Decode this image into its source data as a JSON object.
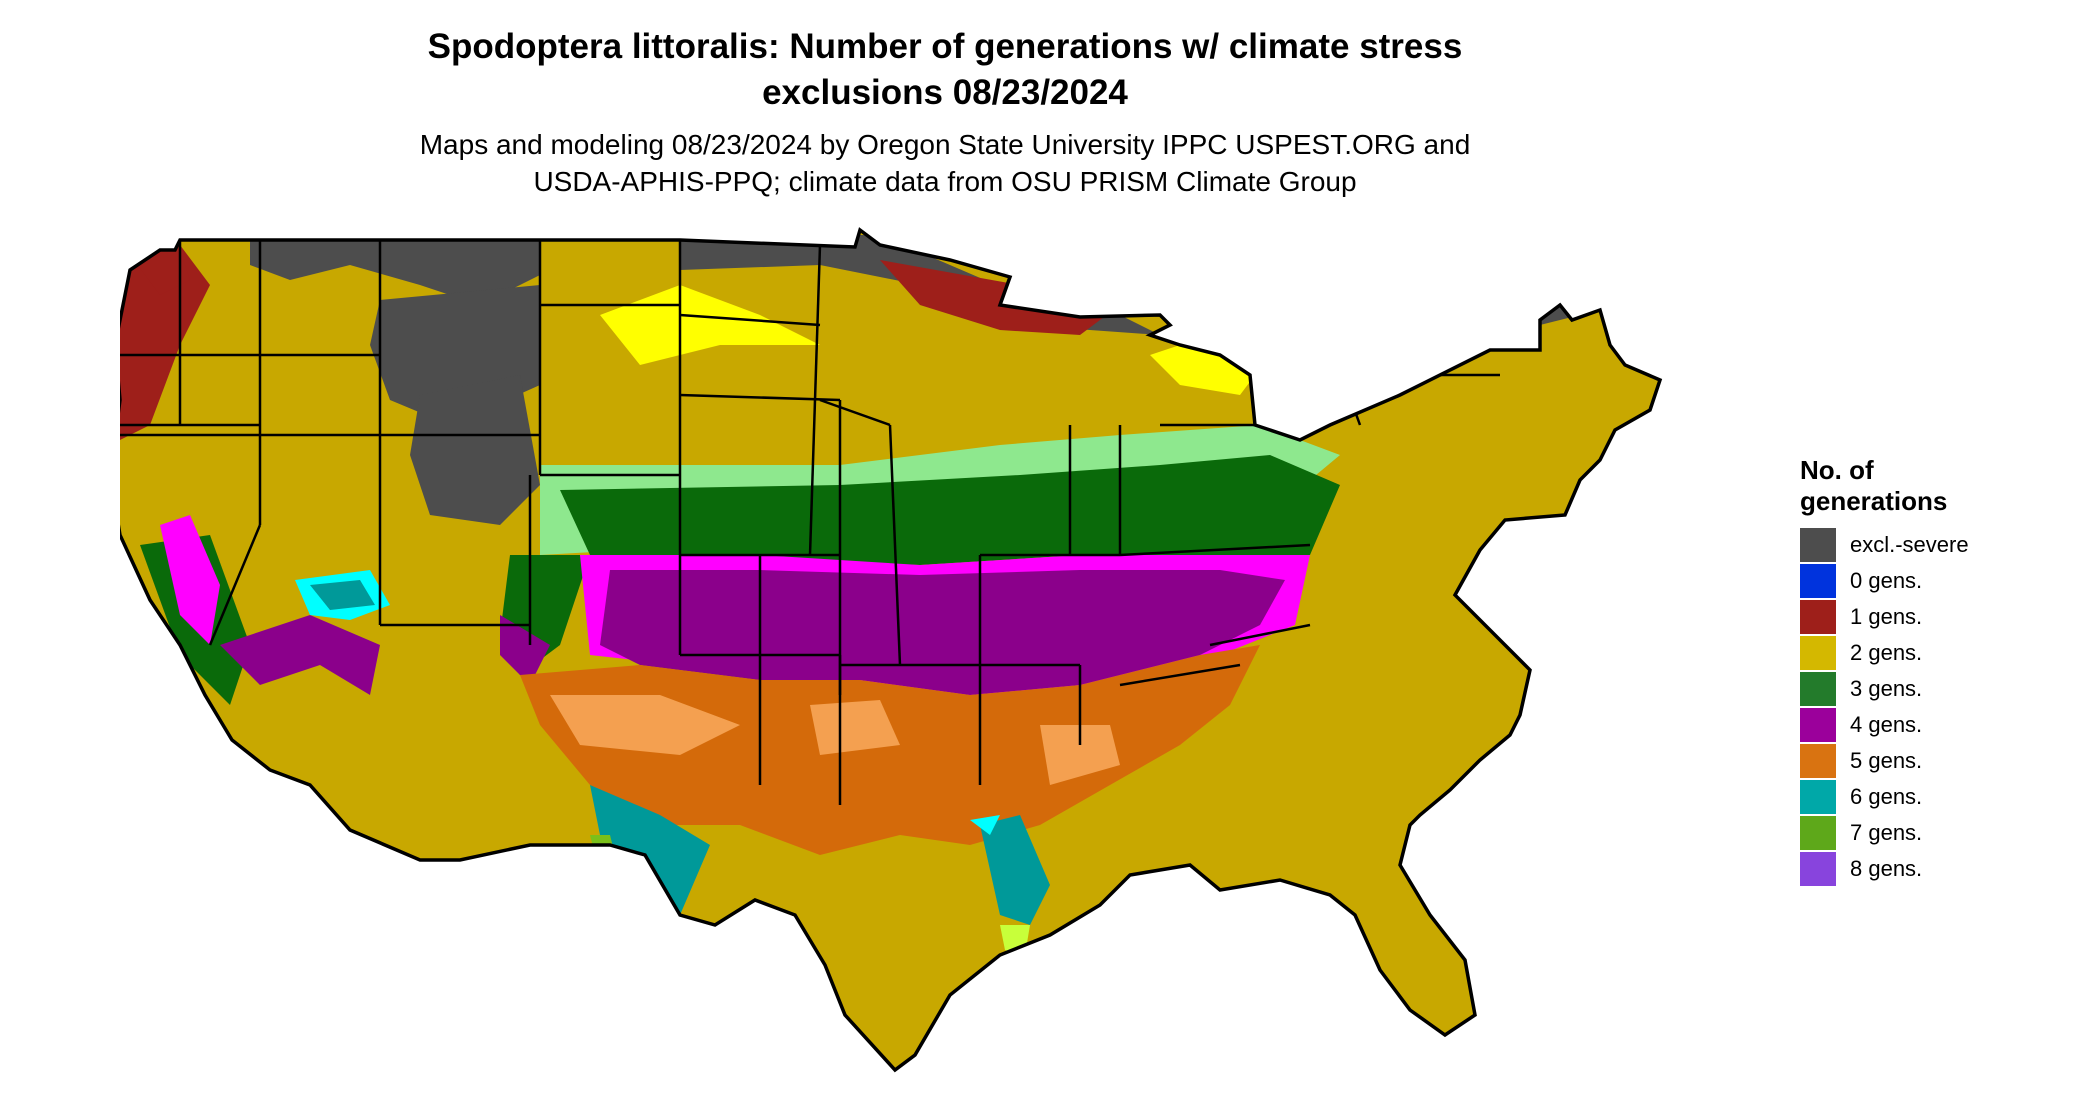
{
  "title": {
    "line1": "Spodoptera littoralis: Number of generations w/ climate stress",
    "line2": "exclusions 08/23/2024"
  },
  "subtitle": {
    "line1": "Maps and modeling 08/23/2024 by Oregon State University IPPC USPEST.ORG and",
    "line2": "USDA-APHIS-PPQ; climate data from OSU PRISM Climate Group"
  },
  "legend": {
    "title_line1": "No. of",
    "title_line2": "generations",
    "items": [
      {
        "label": "excl.-severe",
        "color": "#4d4d4d"
      },
      {
        "label": "0 gens.",
        "color": "#0033dd"
      },
      {
        "label": "1 gens.",
        "color": "#9e1f1a"
      },
      {
        "label": "2 gens.",
        "color": "#d4b800"
      },
      {
        "label": "3 gens.",
        "color": "#237b2b"
      },
      {
        "label": "4 gens.",
        "color": "#9b009b"
      },
      {
        "label": "5 gens.",
        "color": "#d97311"
      },
      {
        "label": "6 gens.",
        "color": "#00a8a8"
      },
      {
        "label": "7 gens.",
        "color": "#5ea81a"
      },
      {
        "label": "8 gens.",
        "color": "#8844dd"
      }
    ]
  },
  "map": {
    "region": "contiguous United States",
    "palette": {
      "excl_severe": "#4d4d4d",
      "gen1": "#9e1f1a",
      "gen2": "#c8a800",
      "gen2_light": "#ffff00",
      "gen3": "#0a6a0a",
      "gen3_light": "#8ee88e",
      "gen4": "#8b008b",
      "gen4_light": "#ff00ff",
      "gen5": "#d46a0a",
      "gen5_light": "#f4a050",
      "gen6": "#009999",
      "gen6_light": "#00ffff",
      "gen7": "#7ac01a",
      "gen7_light": "#c8ff3a",
      "border": "#000000"
    }
  }
}
